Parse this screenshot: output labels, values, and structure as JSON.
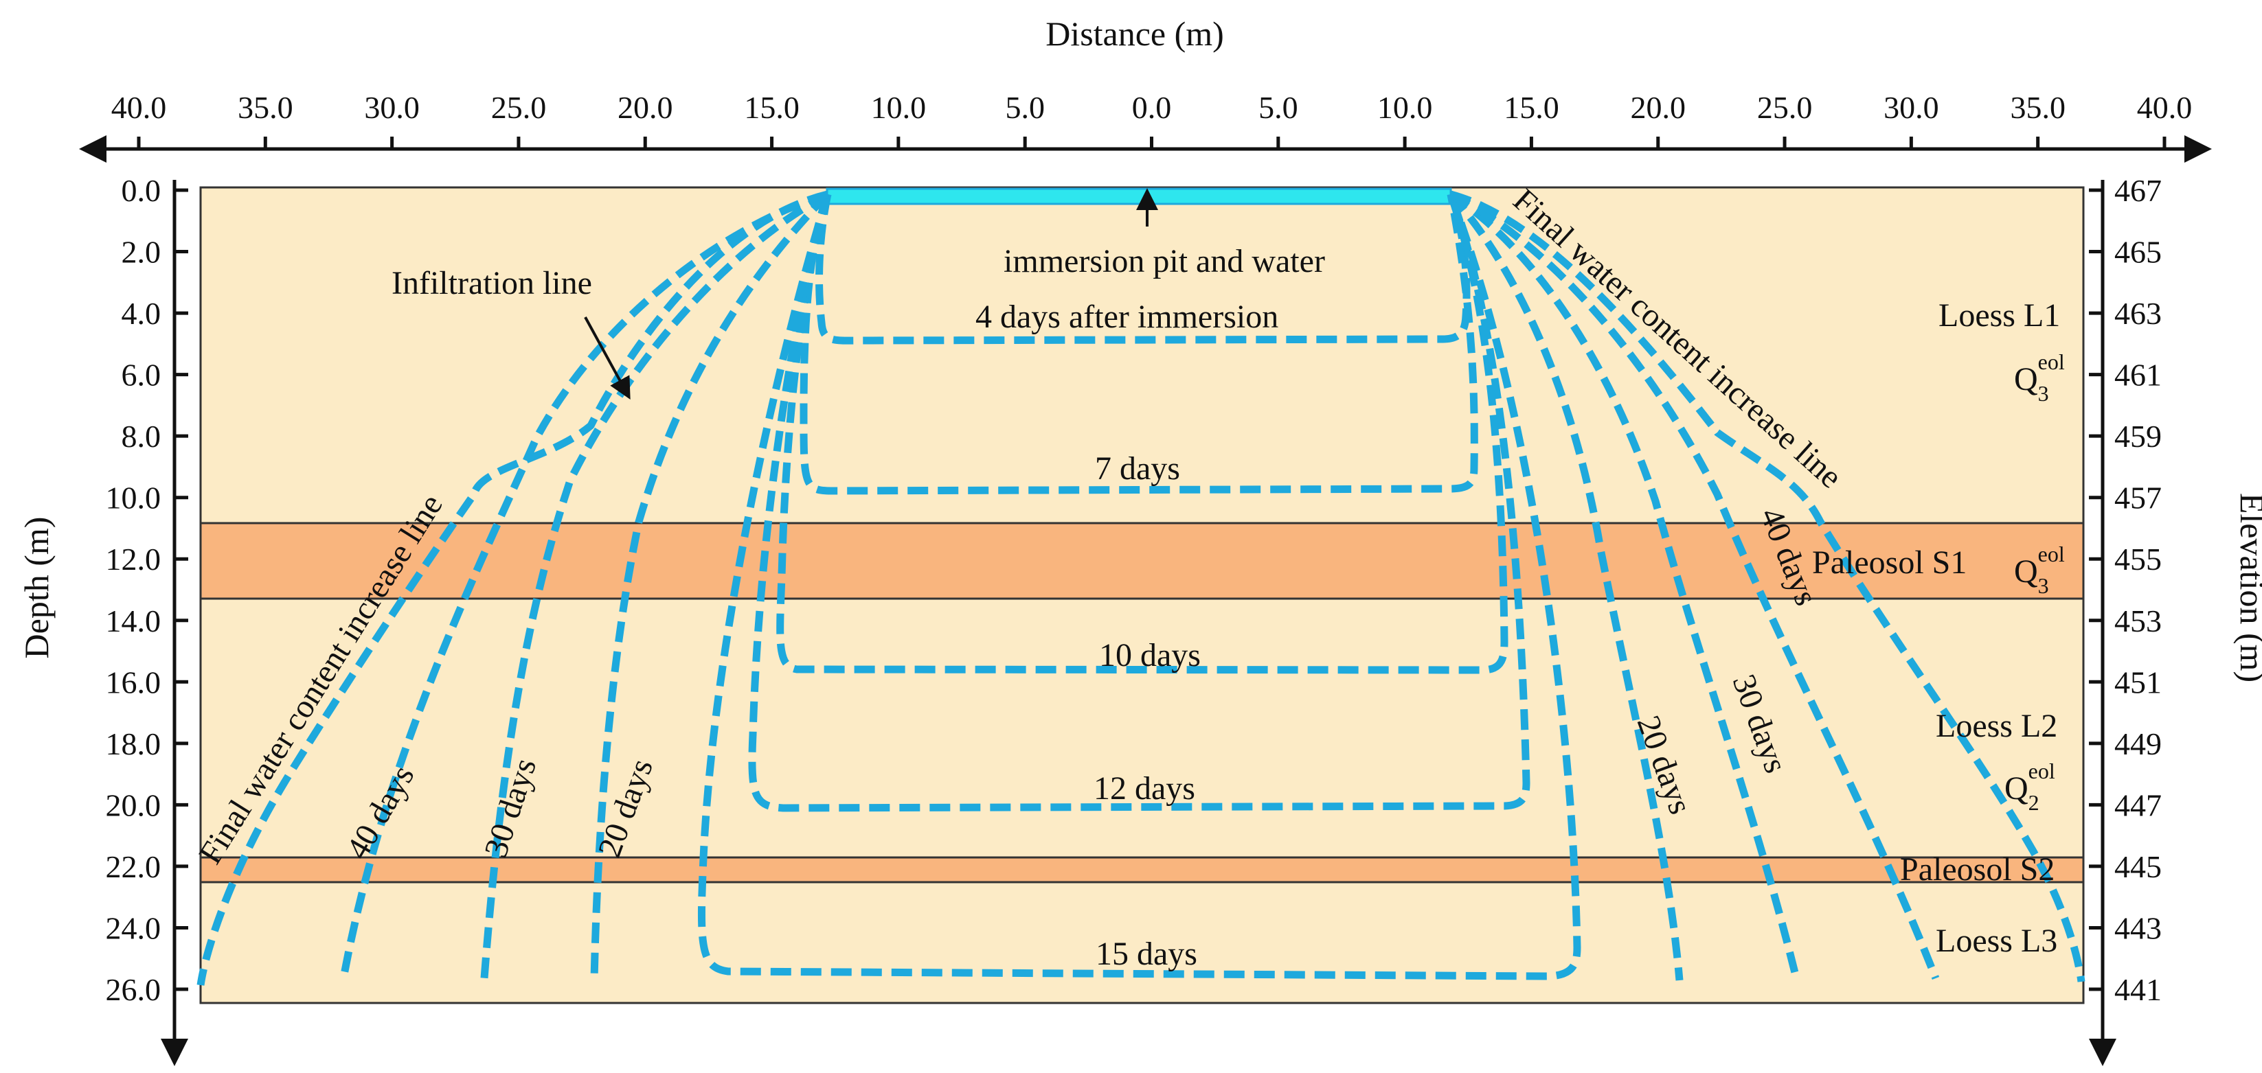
{
  "axes": {
    "top_title": "Distance (m)",
    "left_title": "Depth (m)",
    "right_title": "Elevation (m)",
    "top_ticks": [
      "40.0",
      "35.0",
      "30.0",
      "25.0",
      "20.0",
      "15.0",
      "10.0",
      "5.0",
      "0.0",
      "5.0",
      "10.0",
      "15.0",
      "20.0",
      "25.0",
      "30.0",
      "35.0",
      "40.0"
    ],
    "left_ticks": [
      "0.0",
      "2.0",
      "4.0",
      "6.0",
      "8.0",
      "10.0",
      "12.0",
      "14.0",
      "16.0",
      "18.0",
      "20.0",
      "22.0",
      "24.0",
      "26.0"
    ],
    "right_ticks": [
      "467",
      "465",
      "463",
      "461",
      "459",
      "457",
      "455",
      "453",
      "451",
      "449",
      "447",
      "445",
      "443",
      "441"
    ]
  },
  "layers": {
    "loess_l1": "Loess L1",
    "loess_l1_sym": "Q",
    "loess_l1_sub": "3",
    "loess_l1_sup": "eol",
    "paleosol_s1": "Paleosol S1",
    "paleosol_s1_sym": "Q",
    "paleosol_s1_sub": "3",
    "paleosol_s1_sup": "eol",
    "loess_l2": "Loess L2",
    "loess_l2_sym": "Q",
    "loess_l2_sub": "2",
    "loess_l2_sup": "eol",
    "paleosol_s2": "Paleosol S2",
    "loess_l3": "Loess L3"
  },
  "annotations": {
    "pit": "immersion pit and water",
    "infiltration": "Infiltration line",
    "final_left": "Final  water content increase line",
    "final_right": "Final  water content increase line",
    "d4": "4 days after immersion",
    "d7": "7 days",
    "d10": "10 days",
    "d12": "12 days",
    "d15": "15 days",
    "l20": "20 days",
    "l30": "30 days",
    "l40": "40 days",
    "r20": "20 days",
    "r30": "30 days",
    "r40": "40 days"
  },
  "colors": {
    "loess": "#FCEBC6",
    "paleosol": "#F9B57E",
    "water": "#2EE6EE",
    "curve": "#1EA9DD",
    "axis": "#111111"
  }
}
